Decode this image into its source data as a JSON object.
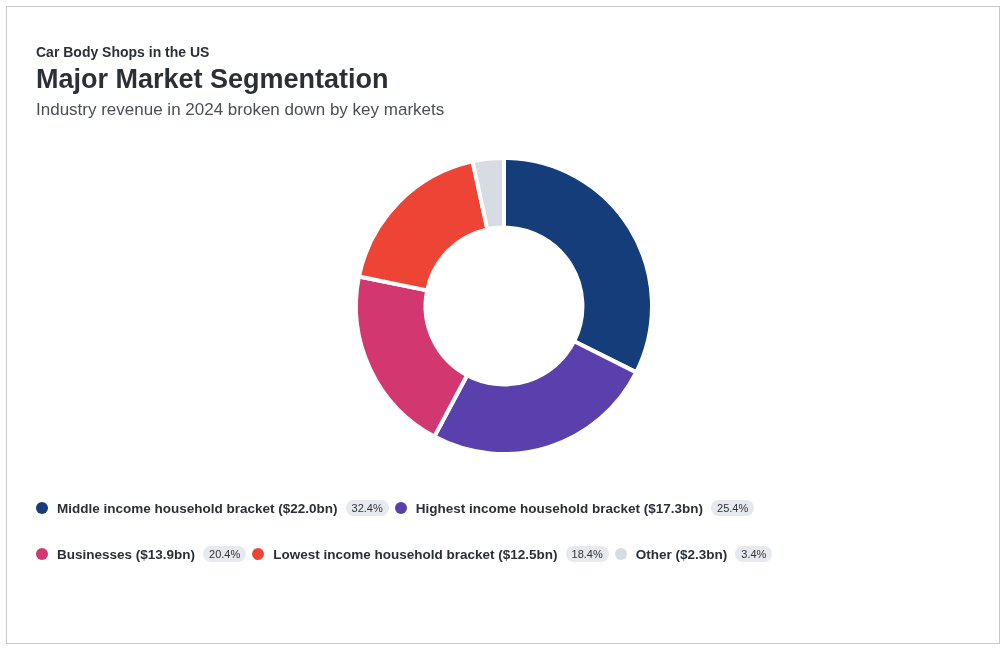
{
  "chart_data": {
    "type": "donut",
    "title": "Major Market Segmentation",
    "subtitle": "Industry revenue in 2024 broken down by key markets",
    "annotations": [
      "Car Body Shops in the US"
    ],
    "categories": [
      "Middle income household bracket ($22.0bn)",
      "Highest income household bracket ($17.3bn)",
      "Businesses ($13.9bn)",
      "Lowest income household bracket ($12.5bn)",
      "Other ($2.3bn)"
    ],
    "values": [
      32.4,
      25.4,
      20.4,
      18.4,
      3.4
    ],
    "value_labels": [
      "32.4%",
      "25.4%",
      "20.4%",
      "18.4%",
      "3.4%"
    ],
    "colors": [
      "#153d7a",
      "#5a40ad",
      "#d2386f",
      "#ee4436",
      "#d6dce2"
    ],
    "legend": "bottom"
  }
}
